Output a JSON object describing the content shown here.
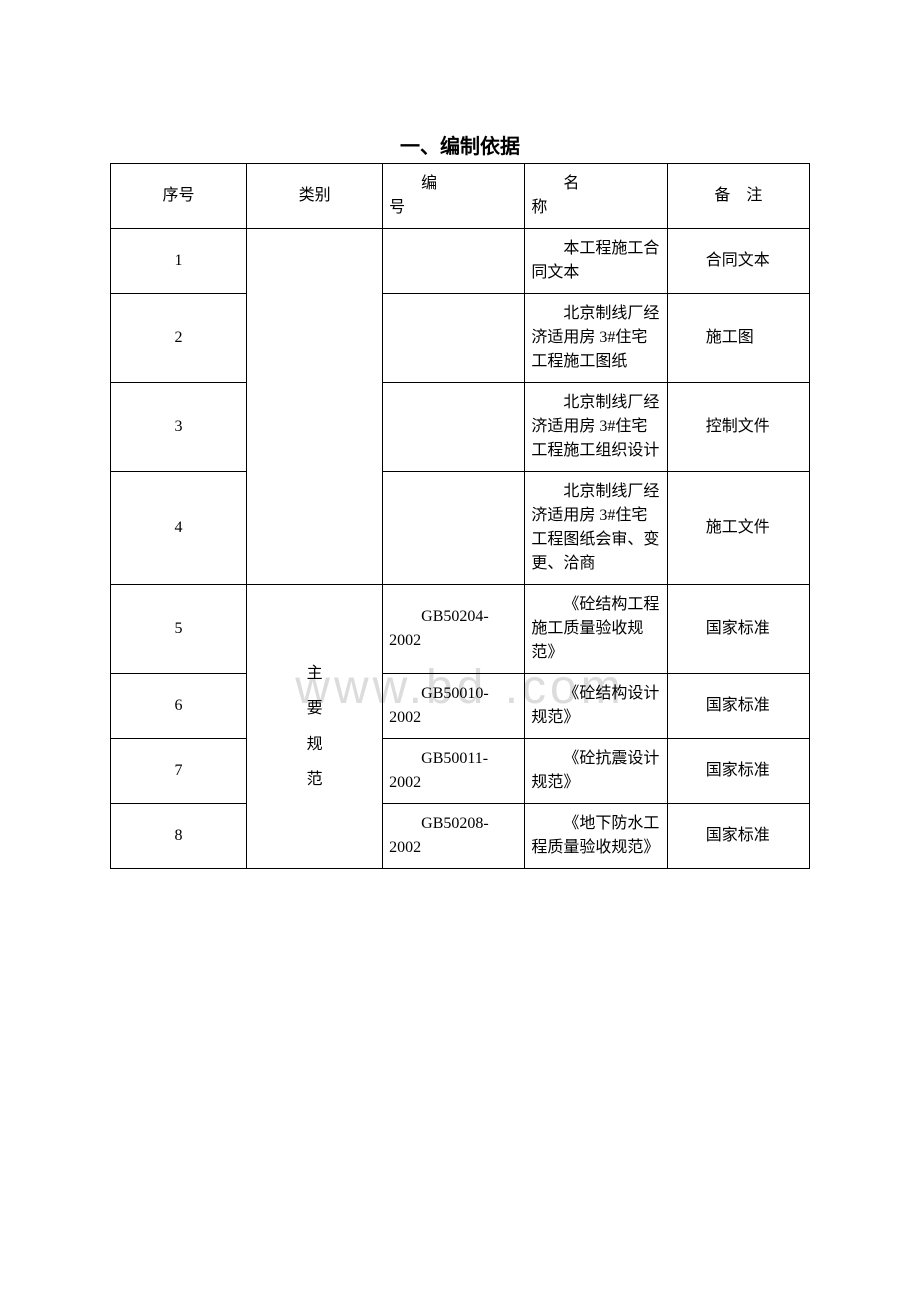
{
  "title": "一、编制依据",
  "watermark": "www.bd    .com",
  "table": {
    "columns": {
      "seq": "序号",
      "cat": "类别",
      "code_prefix": "编",
      "code_line2": "号",
      "name_prefix": "名",
      "name_line2": "称",
      "remark": "备　注"
    },
    "category_group2": "主\n要\n规\n范",
    "rows": [
      {
        "seq": "1",
        "code": "",
        "name": "本工程施工合同文本",
        "remark": "合同文本"
      },
      {
        "seq": "2",
        "code": "",
        "name": "北京制线厂经济适用房 3#住宅工程施工图纸",
        "remark": "施工图"
      },
      {
        "seq": "3",
        "code": "",
        "name": "北京制线厂经济适用房 3#住宅工程施工组织设计",
        "remark": "控制文件"
      },
      {
        "seq": "4",
        "code": "",
        "name": "北京制线厂经济适用房 3#住宅工程图纸会审、变更、洽商",
        "remark": "施工文件"
      },
      {
        "seq": "5",
        "code": "GB50204-2002",
        "name": "《砼结构工程施工质量验收规范》",
        "remark": "国家标准"
      },
      {
        "seq": "6",
        "code": "GB50010-2002",
        "name": "《砼结构设计规范》",
        "remark": "国家标准"
      },
      {
        "seq": "7",
        "code": "GB50011-2002",
        "name": "《砼抗震设计规范》",
        "remark": "国家标准"
      },
      {
        "seq": "8",
        "code": "GB50208-2002",
        "name": "《地下防水工程质量验收规范》",
        "remark": "国家标准"
      }
    ]
  },
  "styling": {
    "background_color": "#ffffff",
    "text_color": "#000000",
    "border_color": "#000000",
    "watermark_color": "#dcdcdc",
    "title_fontsize": 20,
    "cell_fontsize": 16,
    "font_family": "SimSun"
  }
}
